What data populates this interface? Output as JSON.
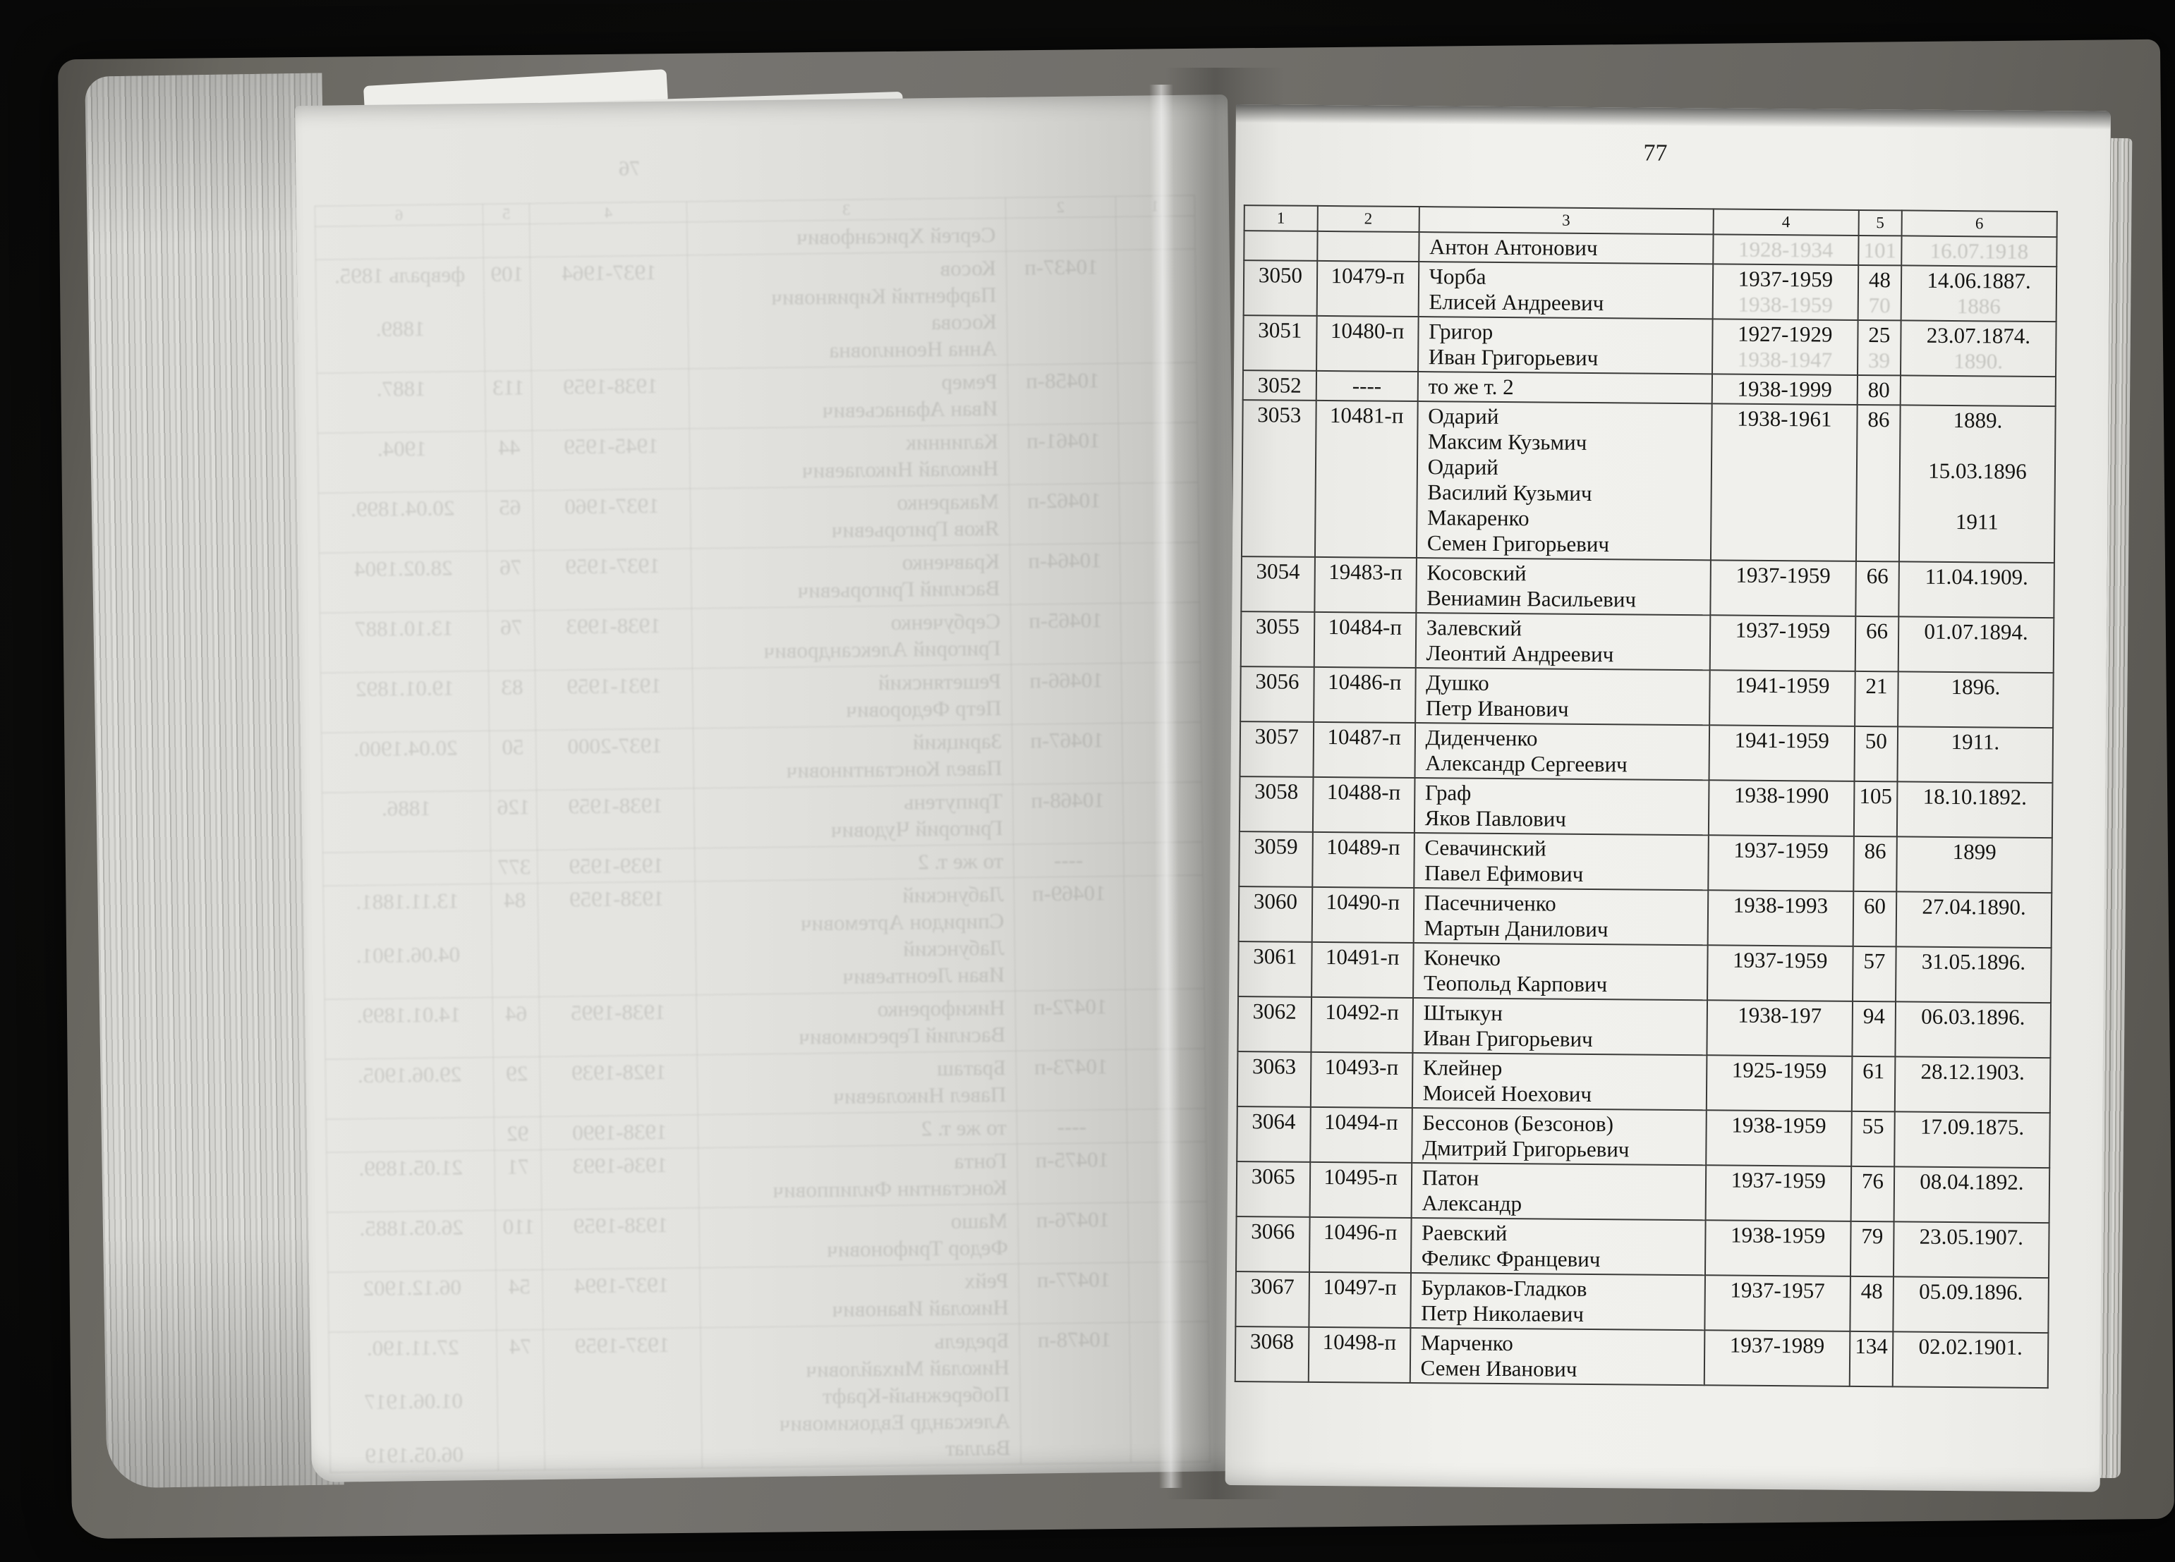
{
  "scene": {
    "background_color": "#0b0b0a",
    "cover_color": "#6f6d68",
    "right_page_color": "#f0f0ec",
    "left_page_color": "#dfdfdb"
  },
  "right_page": {
    "page_number": "77",
    "table": {
      "header": [
        "1",
        "2",
        "3",
        "4",
        "5",
        "6"
      ],
      "rows": [
        {
          "no": "",
          "file": "",
          "name_lines": [
            "Антон Антонович"
          ],
          "years": "",
          "sheets": "",
          "born_lines": [],
          "ghost": {
            "years": "1928-1934",
            "sheets": "101",
            "born": "16.07.1918"
          }
        },
        {
          "no": "3050",
          "file": "10479-п",
          "name_lines": [
            "Чорба",
            "Елисей Андреевич"
          ],
          "years": "1937-1959",
          "sheets": "48",
          "born_lines": [
            "14.06.1887."
          ],
          "ghost": {
            "years": "1938-1959",
            "sheets": "70",
            "born": "1886"
          }
        },
        {
          "no": "3051",
          "file": "10480-п",
          "name_lines": [
            "Григор",
            "Иван Григорьевич"
          ],
          "years": "1927-1929",
          "sheets": "25",
          "born_lines": [
            "23.07.1874."
          ],
          "ghost": {
            "years": "1938-1947",
            "sheets": "39",
            "born": "1890."
          }
        },
        {
          "no": "3052",
          "file": "----",
          "name_lines": [
            "то же  т. 2"
          ],
          "years": "1938-1999",
          "sheets": "80",
          "born_lines": []
        },
        {
          "no": "3053",
          "file": "10481-п",
          "name_lines": [
            "Одарий",
            "Максим Кузьмич",
            "Одарий",
            "Василий Кузьмич",
            "Макаренко",
            "Семен Григорьевич"
          ],
          "years": "1938-1961",
          "sheets": "86",
          "born_lines": [
            "1889.",
            "",
            "15.03.1896",
            "",
            "1911",
            ""
          ]
        },
        {
          "no": "3054",
          "file": "19483-п",
          "name_lines": [
            "Косовский",
            "Вениамин Васильевич"
          ],
          "years": "1937-1959",
          "sheets": "66",
          "born_lines": [
            "11.04.1909."
          ]
        },
        {
          "no": "3055",
          "file": "10484-п",
          "name_lines": [
            "Залевский",
            "Леонтий Андреевич"
          ],
          "years": "1937-1959",
          "sheets": "66",
          "born_lines": [
            "01.07.1894."
          ]
        },
        {
          "no": "3056",
          "file": "10486-п",
          "name_lines": [
            "Душко",
            "Петр Иванович"
          ],
          "years": "1941-1959",
          "sheets": "21",
          "born_lines": [
            "1896."
          ]
        },
        {
          "no": "3057",
          "file": "10487-п",
          "name_lines": [
            "Диденченко",
            "Александр Сергеевич"
          ],
          "years": "1941-1959",
          "sheets": "50",
          "born_lines": [
            "1911."
          ]
        },
        {
          "no": "3058",
          "file": "10488-п",
          "name_lines": [
            "Граф",
            "Яков Павлович"
          ],
          "years": "1938-1990",
          "sheets": "105",
          "born_lines": [
            "18.10.1892."
          ]
        },
        {
          "no": "3059",
          "file": "10489-п",
          "name_lines": [
            "Севачинский",
            "Павел Ефимович"
          ],
          "years": "1937-1959",
          "sheets": "86",
          "born_lines": [
            "1899"
          ]
        },
        {
          "no": "3060",
          "file": "10490-п",
          "name_lines": [
            "Пасечниченко",
            "Мартын Данилович"
          ],
          "years": "1938-1993",
          "sheets": "60",
          "born_lines": [
            "27.04.1890."
          ]
        },
        {
          "no": "3061",
          "file": "10491-п",
          "name_lines": [
            "Конечко",
            "Теопольд Карпович"
          ],
          "years": "1937-1959",
          "sheets": "57",
          "born_lines": [
            "31.05.1896."
          ]
        },
        {
          "no": "3062",
          "file": "10492-п",
          "name_lines": [
            "Штыкун",
            "Иван Григорьевич"
          ],
          "years": "1938-197",
          "sheets": "94",
          "born_lines": [
            "06.03.1896."
          ]
        },
        {
          "no": "3063",
          "file": "10493-п",
          "name_lines": [
            "Клейнер",
            "Моисей Ноехович"
          ],
          "years": "1925-1959",
          "sheets": "61",
          "born_lines": [
            "28.12.1903."
          ]
        },
        {
          "no": "3064",
          "file": "10494-п",
          "name_lines": [
            "Бессонов (Безсонов)",
            "Дмитрий Григорьевич"
          ],
          "years": "1938-1959",
          "sheets": "55",
          "born_lines": [
            "17.09.1875."
          ]
        },
        {
          "no": "3065",
          "file": "10495-п",
          "name_lines": [
            "Патон",
            "Александр"
          ],
          "years": "1937-1959",
          "sheets": "76",
          "born_lines": [
            "08.04.1892."
          ]
        },
        {
          "no": "3066",
          "file": "10496-п",
          "name_lines": [
            "Раевский",
            "Феликс Францевич"
          ],
          "years": "1938-1959",
          "sheets": "79",
          "born_lines": [
            "23.05.1907."
          ]
        },
        {
          "no": "3067",
          "file": "10497-п",
          "name_lines": [
            "Бурлаков-Гладков",
            "Петр Николаевич"
          ],
          "years": "1937-1957",
          "sheets": "48",
          "born_lines": [
            "05.09.1896."
          ]
        },
        {
          "no": "3068",
          "file": "10498-п",
          "name_lines": [
            "Марченко",
            "Семен Иванович"
          ],
          "years": "1937-1989",
          "sheets": "134",
          "born_lines": [
            "02.02.1901."
          ]
        }
      ]
    }
  },
  "left_page": {
    "page_number": "76",
    "ghost_table": {
      "header": [
        "1",
        "2",
        "3",
        "4",
        "5",
        "6"
      ],
      "rows": [
        {
          "no": "",
          "file": "",
          "name_lines": [
            "Сергей Хрисанфович"
          ],
          "years": "",
          "sheets": "",
          "born_lines": []
        },
        {
          "no": "",
          "file": "10437-п",
          "name_lines": [
            "Косов",
            "Парфентий Кириянович",
            "Косова",
            "Анна Неониловна"
          ],
          "years": "1937-1964",
          "sheets": "109",
          "born_lines": [
            "февраль 1895.",
            "",
            "1889.",
            ""
          ]
        },
        {
          "no": "",
          "file": "10458-п",
          "name_lines": [
            "Ремер",
            "Иван Афанасьевич"
          ],
          "years": "1938-1959",
          "sheets": "113",
          "born_lines": [
            "1887.",
            ""
          ]
        },
        {
          "no": "",
          "file": "10461-п",
          "name_lines": [
            "Калинник",
            "Николай Николаевич"
          ],
          "years": "1945-1959",
          "sheets": "44",
          "born_lines": [
            "1904.",
            ""
          ]
        },
        {
          "no": "",
          "file": "10462-п",
          "name_lines": [
            "Макаренко",
            "Яков Григорьевич"
          ],
          "years": "1937-1960",
          "sheets": "65",
          "born_lines": [
            "20.04.1899.",
            ""
          ]
        },
        {
          "no": "",
          "file": "10464-п",
          "name_lines": [
            "Кравченко",
            "Василий Григорьевич"
          ],
          "years": "1937-1959",
          "sheets": "76",
          "born_lines": [
            "28.02.1904",
            ""
          ]
        },
        {
          "no": "",
          "file": "10465-п",
          "name_lines": [
            "Сербученко",
            "Григорий Александрович"
          ],
          "years": "1938-1993",
          "sheets": "76",
          "born_lines": [
            "13.10.1887",
            ""
          ]
        },
        {
          "no": "",
          "file": "10466-п",
          "name_lines": [
            "Решетянский",
            "Петр Федорович"
          ],
          "years": "1931-1959",
          "sheets": "83",
          "born_lines": [
            "19.01.1892",
            ""
          ]
        },
        {
          "no": "",
          "file": "10467-п",
          "name_lines": [
            "Зарицкий",
            "Павел Константинович"
          ],
          "years": "1937-2000",
          "sheets": "50",
          "born_lines": [
            "20.04.1900.",
            ""
          ]
        },
        {
          "no": "",
          "file": "10468-п",
          "name_lines": [
            "Трипутень",
            "Григорий Чудович"
          ],
          "years": "1938-1959",
          "sheets": "126",
          "born_lines": [
            "1886.",
            ""
          ]
        },
        {
          "no": "",
          "file": "----",
          "name_lines": [
            "то же  т. 2"
          ],
          "years": "1939-1959",
          "sheets": "377",
          "born_lines": []
        },
        {
          "no": "",
          "file": "10469-п",
          "name_lines": [
            "Лабунский",
            "Спиридон Артемович",
            "Лабунский",
            "Иван Леонтьевич"
          ],
          "years": "1938-1959",
          "sheets": "84",
          "born_lines": [
            "13.11.1881.",
            "",
            "04.06.1901.",
            ""
          ]
        },
        {
          "no": "",
          "file": "10472-п",
          "name_lines": [
            "Никифоренко",
            "Василий Гересимович"
          ],
          "years": "1938-1995",
          "sheets": "64",
          "born_lines": [
            "14.01.1899.",
            ""
          ]
        },
        {
          "no": "",
          "file": "10473-п",
          "name_lines": [
            "Браташ",
            "Павел Николаевич"
          ],
          "years": "1928-1939",
          "sheets": "29",
          "born_lines": [
            "29.06.1905.",
            ""
          ]
        },
        {
          "no": "",
          "file": "----",
          "name_lines": [
            "то же  т. 2"
          ],
          "years": "1938-1990",
          "sheets": "92",
          "born_lines": []
        },
        {
          "no": "",
          "file": "10475-п",
          "name_lines": [
            "Гонта",
            "Константин Филиппович"
          ],
          "years": "1936-1993",
          "sheets": "71",
          "born_lines": [
            "21.05.1899.",
            ""
          ]
        },
        {
          "no": "",
          "file": "10476-п",
          "name_lines": [
            "Машо",
            "Федор Трифонович"
          ],
          "years": "1938-1959",
          "sheets": "110",
          "born_lines": [
            "26.05.1885.",
            ""
          ]
        },
        {
          "no": "",
          "file": "10477-п",
          "name_lines": [
            "Рейх",
            "Николай Иванович"
          ],
          "years": "1937-1994",
          "sheets": "54",
          "born_lines": [
            "06.12.1902",
            ""
          ]
        },
        {
          "no": "",
          "file": "10478-п",
          "name_lines": [
            "Бредель",
            "Николай Михайлович",
            "Побережный-Крафт",
            "Александр Евдокимович",
            "Валлат"
          ],
          "years": "1937-1959",
          "sheets": "74",
          "born_lines": [
            "27.11.190.",
            "",
            "01.06.1917",
            "",
            "06.05.1919"
          ]
        }
      ]
    }
  }
}
